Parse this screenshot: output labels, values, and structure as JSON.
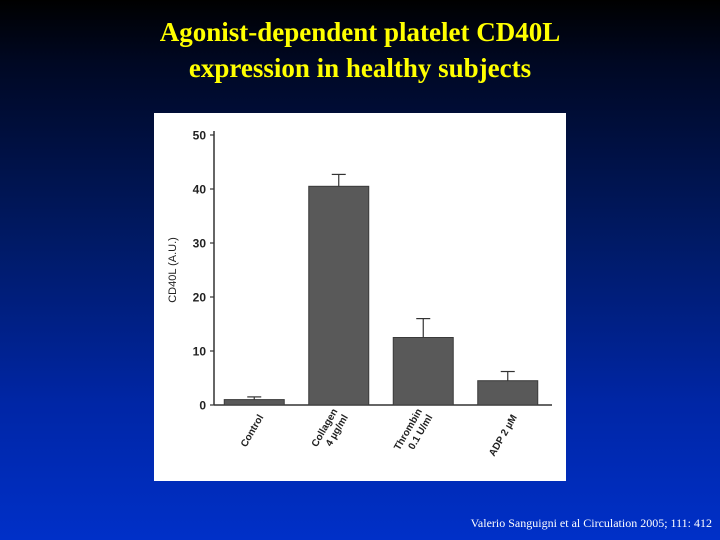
{
  "slide": {
    "title_line1": "Agonist-dependent platelet CD40L",
    "title_line2": "expression in healthy subjects",
    "citation": "Valerio Sanguigni et al Circulation 2005; 111: 412",
    "colors": {
      "background": "#0026a6",
      "title": "#ffff00",
      "panel": "#ffffff",
      "bar": "#595959"
    }
  },
  "chart_data": {
    "type": "bar",
    "ylabel": "CD40L (A.U.)",
    "ylim": [
      0,
      50
    ],
    "yticks": [
      0,
      10,
      20,
      30,
      40,
      50
    ],
    "categories": [
      [
        "Control"
      ],
      [
        "Collagen",
        "4 µg/ml"
      ],
      [
        "Thrombin",
        "0.1 U/ml"
      ],
      [
        "ADP 2 µM"
      ]
    ],
    "values": [
      1.0,
      40.5,
      12.5,
      4.5
    ],
    "error": [
      0.5,
      2.2,
      3.5,
      1.7
    ],
    "grid": false,
    "legend": "none"
  }
}
